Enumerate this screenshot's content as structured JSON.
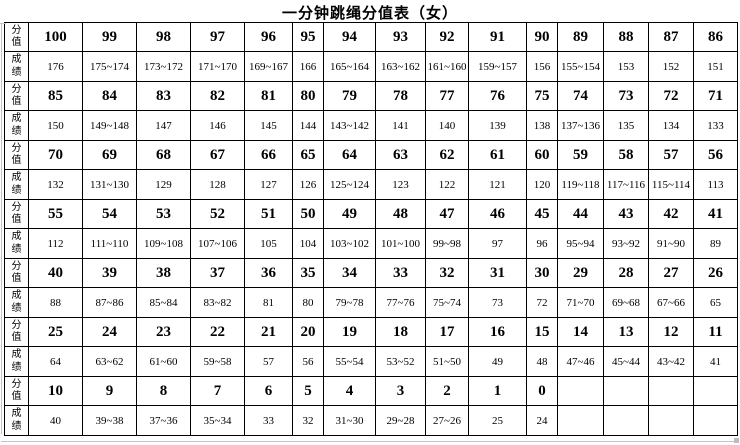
{
  "title": "一分钟跳绳分值表（女）",
  "table": {
    "score_label": "分值",
    "result_label": "成绩",
    "pairs": [
      {
        "scores": [
          "100",
          "99",
          "98",
          "97",
          "96",
          "95",
          "94",
          "93",
          "92",
          "91",
          "90",
          "89",
          "88",
          "87",
          "86"
        ],
        "results": [
          "176",
          "175~174",
          "173~172",
          "171~170",
          "169~167",
          "166",
          "165~164",
          "163~162",
          "161~160",
          "159~157",
          "156",
          "155~154",
          "153",
          "152",
          "151"
        ]
      },
      {
        "scores": [
          "85",
          "84",
          "83",
          "82",
          "81",
          "80",
          "79",
          "78",
          "77",
          "76",
          "75",
          "74",
          "73",
          "72",
          "71"
        ],
        "results": [
          "150",
          "149~148",
          "147",
          "146",
          "145",
          "144",
          "143~142",
          "141",
          "140",
          "139",
          "138",
          "137~136",
          "135",
          "134",
          "133"
        ]
      },
      {
        "scores": [
          "70",
          "69",
          "68",
          "67",
          "66",
          "65",
          "64",
          "63",
          "62",
          "61",
          "60",
          "59",
          "58",
          "57",
          "56"
        ],
        "results": [
          "132",
          "131~130",
          "129",
          "128",
          "127",
          "126",
          "125~124",
          "123",
          "122",
          "121",
          "120",
          "119~118",
          "117~116",
          "115~114",
          "113"
        ]
      },
      {
        "scores": [
          "55",
          "54",
          "53",
          "52",
          "51",
          "50",
          "49",
          "48",
          "47",
          "46",
          "45",
          "44",
          "43",
          "42",
          "41"
        ],
        "results": [
          "112",
          "111~110",
          "109~108",
          "107~106",
          "105",
          "104",
          "103~102",
          "101~100",
          "99~98",
          "97",
          "96",
          "95~94",
          "93~92",
          "91~90",
          "89"
        ]
      },
      {
        "scores": [
          "40",
          "39",
          "38",
          "37",
          "36",
          "35",
          "34",
          "33",
          "32",
          "31",
          "30",
          "29",
          "28",
          "27",
          "26"
        ],
        "results": [
          "88",
          "87~86",
          "85~84",
          "83~82",
          "81",
          "80",
          "79~78",
          "77~76",
          "75~74",
          "73",
          "72",
          "71~70",
          "69~68",
          "67~66",
          "65"
        ]
      },
      {
        "scores": [
          "25",
          "24",
          "23",
          "22",
          "21",
          "20",
          "19",
          "18",
          "17",
          "16",
          "15",
          "14",
          "13",
          "12",
          "11"
        ],
        "results": [
          "64",
          "63~62",
          "61~60",
          "59~58",
          "57",
          "56",
          "55~54",
          "53~52",
          "51~50",
          "49",
          "48",
          "47~46",
          "45~44",
          "43~42",
          "41"
        ]
      },
      {
        "scores": [
          "10",
          "9",
          "8",
          "7",
          "6",
          "5",
          "4",
          "3",
          "2",
          "1",
          "0",
          "",
          "",
          "",
          ""
        ],
        "results": [
          "40",
          "39~38",
          "37~36",
          "35~34",
          "33",
          "32",
          "31~30",
          "29~28",
          "27~26",
          "25",
          "24",
          "",
          "",
          "",
          ""
        ]
      }
    ]
  }
}
